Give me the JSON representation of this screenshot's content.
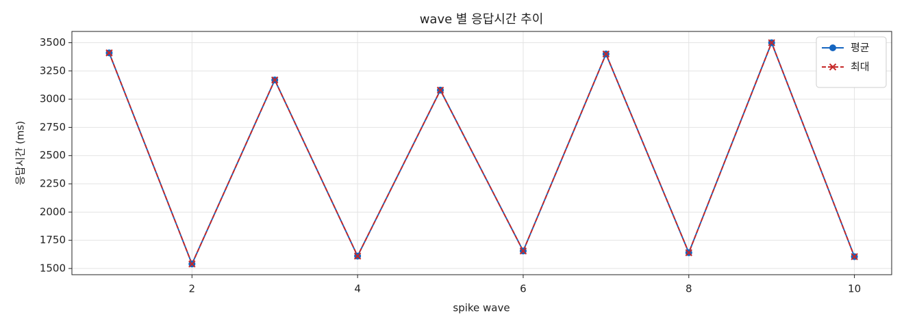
{
  "chart_data": {
    "type": "line",
    "title": "wave 별 응답시간 추이",
    "x_label": "spike wave",
    "y_label": "응답시간 (ms)",
    "x": [
      1,
      2,
      3,
      4,
      5,
      6,
      7,
      8,
      9,
      10
    ],
    "series": [
      {
        "name": "평균",
        "color": "#1565c0",
        "marker": "circle",
        "dashed": false,
        "values": [
          3410,
          1540,
          3170,
          1610,
          3080,
          1655,
          3400,
          1640,
          3500,
          1605
        ]
      },
      {
        "name": "최대",
        "color": "#c62828",
        "marker": "x",
        "dashed": true,
        "values": [
          3410,
          1540,
          3170,
          1610,
          3080,
          1655,
          3400,
          1640,
          3500,
          1605
        ]
      }
    ],
    "xlim": [
      0.55,
      10.45
    ],
    "xticks": [
      2,
      4,
      6,
      8,
      10
    ],
    "ylim": [
      1445,
      3600
    ],
    "yticks": [
      1500,
      1750,
      2000,
      2250,
      2500,
      2750,
      3000,
      3250,
      3500
    ],
    "grid": true,
    "legend": "upper right"
  }
}
